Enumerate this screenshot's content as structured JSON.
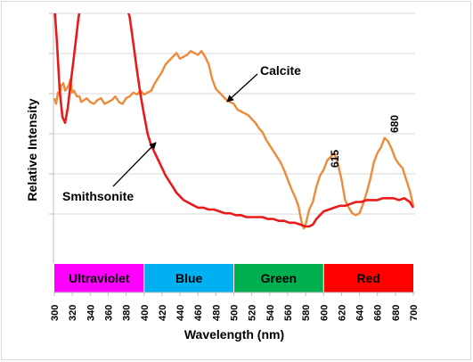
{
  "chart_data": {
    "type": "line",
    "title": "",
    "xlabel": "Wavelength (nm)",
    "ylabel": "Relative Intensity",
    "xlim": [
      300,
      700
    ],
    "x_ticks": [
      "300",
      "320",
      "340",
      "360",
      "380",
      "400",
      "420",
      "440",
      "460",
      "480",
      "500",
      "520",
      "540",
      "560",
      "580",
      "600",
      "620",
      "640",
      "660",
      "680",
      "700"
    ],
    "grid": "horizontal",
    "legend": "none",
    "series": [
      {
        "name": "Calcite",
        "color": "#ED8B3B",
        "x": [
          300,
          302,
          304,
          306,
          308,
          310,
          312,
          314,
          316,
          318,
          320,
          322,
          325,
          328,
          330,
          333,
          336,
          340,
          344,
          348,
          352,
          356,
          360,
          364,
          368,
          372,
          376,
          380,
          384,
          388,
          392,
          396,
          400,
          404,
          408,
          412,
          416,
          420,
          424,
          428,
          432,
          436,
          440,
          444,
          448,
          452,
          456,
          460,
          464,
          468,
          472,
          476,
          480,
          484,
          488,
          492,
          496,
          500,
          504,
          508,
          512,
          516,
          520,
          524,
          528,
          532,
          536,
          540,
          544,
          548,
          552,
          556,
          560,
          564,
          568,
          572,
          576,
          578,
          580,
          584,
          588,
          592,
          596,
          600,
          604,
          608,
          612,
          616,
          620,
          624,
          628,
          632,
          636,
          640,
          644,
          648,
          652,
          656,
          660,
          664,
          668,
          672,
          676,
          680,
          684,
          688,
          692,
          696,
          700
        ],
        "y": [
          85,
          82,
          88,
          87,
          92,
          93,
          89,
          90,
          92,
          95,
          88,
          89,
          86,
          86,
          83,
          84,
          85,
          83,
          82,
          84,
          85,
          82,
          83,
          84,
          86,
          83,
          82,
          85,
          86,
          88,
          87,
          89,
          87,
          88,
          89,
          93,
          96,
          99,
          103,
          105,
          107,
          109,
          106,
          107,
          108,
          110,
          109,
          108,
          110,
          107,
          103,
          95,
          90,
          88,
          86,
          84,
          83,
          82,
          79,
          78,
          77,
          76,
          74,
          72,
          69,
          67,
          63,
          60,
          57,
          54,
          51,
          47,
          42,
          37,
          33,
          28,
          18,
          16,
          18,
          26,
          30,
          38,
          44,
          47,
          52,
          54,
          56,
          50,
          42,
          31,
          27,
          24,
          23,
          24,
          29,
          35,
          42,
          51,
          56,
          59,
          64,
          62,
          58,
          53,
          50,
          48,
          42,
          36,
          28
        ]
      },
      {
        "name": "Smithsonite",
        "color": "#E81A1A",
        "x": [
          300,
          303,
          306,
          309,
          312,
          315,
          318,
          321,
          324,
          327,
          330,
          333,
          336,
          339,
          342,
          345,
          348,
          352,
          356,
          360,
          364,
          368,
          372,
          376,
          380,
          384,
          388,
          392,
          396,
          400,
          404,
          408,
          412,
          416,
          420,
          424,
          428,
          432,
          436,
          440,
          444,
          448,
          452,
          456,
          460,
          466,
          472,
          478,
          484,
          490,
          496,
          502,
          508,
          514,
          520,
          526,
          532,
          538,
          544,
          550,
          556,
          562,
          568,
          574,
          580,
          584,
          588,
          592,
          596,
          600,
          606,
          612,
          618,
          624,
          630,
          636,
          642,
          648,
          654,
          660,
          666,
          672,
          678,
          684,
          690,
          696,
          700
        ],
        "y": [
          135,
          114,
          89,
          75,
          72,
          80,
          92,
          104,
          116,
          128,
          135,
          135,
          135,
          135,
          135,
          135,
          135,
          135,
          135,
          135,
          135,
          135,
          135,
          135,
          135,
          128,
          114,
          100,
          87,
          76,
          66,
          60,
          56,
          52,
          48,
          44,
          41,
          38,
          35,
          33,
          31,
          30,
          29,
          28,
          27,
          27,
          26,
          26,
          25,
          24,
          24,
          23,
          23,
          22,
          22,
          22,
          22,
          21,
          21,
          20,
          20,
          19,
          19,
          18,
          17,
          17,
          18,
          21,
          23,
          25,
          26,
          27,
          28,
          28,
          29,
          30,
          30,
          31,
          31,
          31,
          32,
          32,
          32,
          31,
          32,
          30,
          27
        ]
      }
    ],
    "bands": [
      {
        "label": "Ultraviolet",
        "from": 300,
        "to": 400,
        "color": "#FF00FF",
        "text_color": "#000000"
      },
      {
        "label": "Blue",
        "from": 400,
        "to": 500,
        "color": "#00B0F0",
        "text_color": "#000000"
      },
      {
        "label": "Green",
        "from": 500,
        "to": 600,
        "color": "#00B050",
        "text_color": "#000000"
      },
      {
        "label": "Red",
        "from": 600,
        "to": 700,
        "color": "#FF0000",
        "text_color": "#000000"
      }
    ],
    "annotations": [
      {
        "text": "Calcite",
        "arrow_to_x": 455
      },
      {
        "text": "Smithsonite",
        "arrow_to_x": 418
      },
      {
        "text": "615",
        "x": 615
      },
      {
        "text": "680",
        "x": 680
      }
    ]
  }
}
